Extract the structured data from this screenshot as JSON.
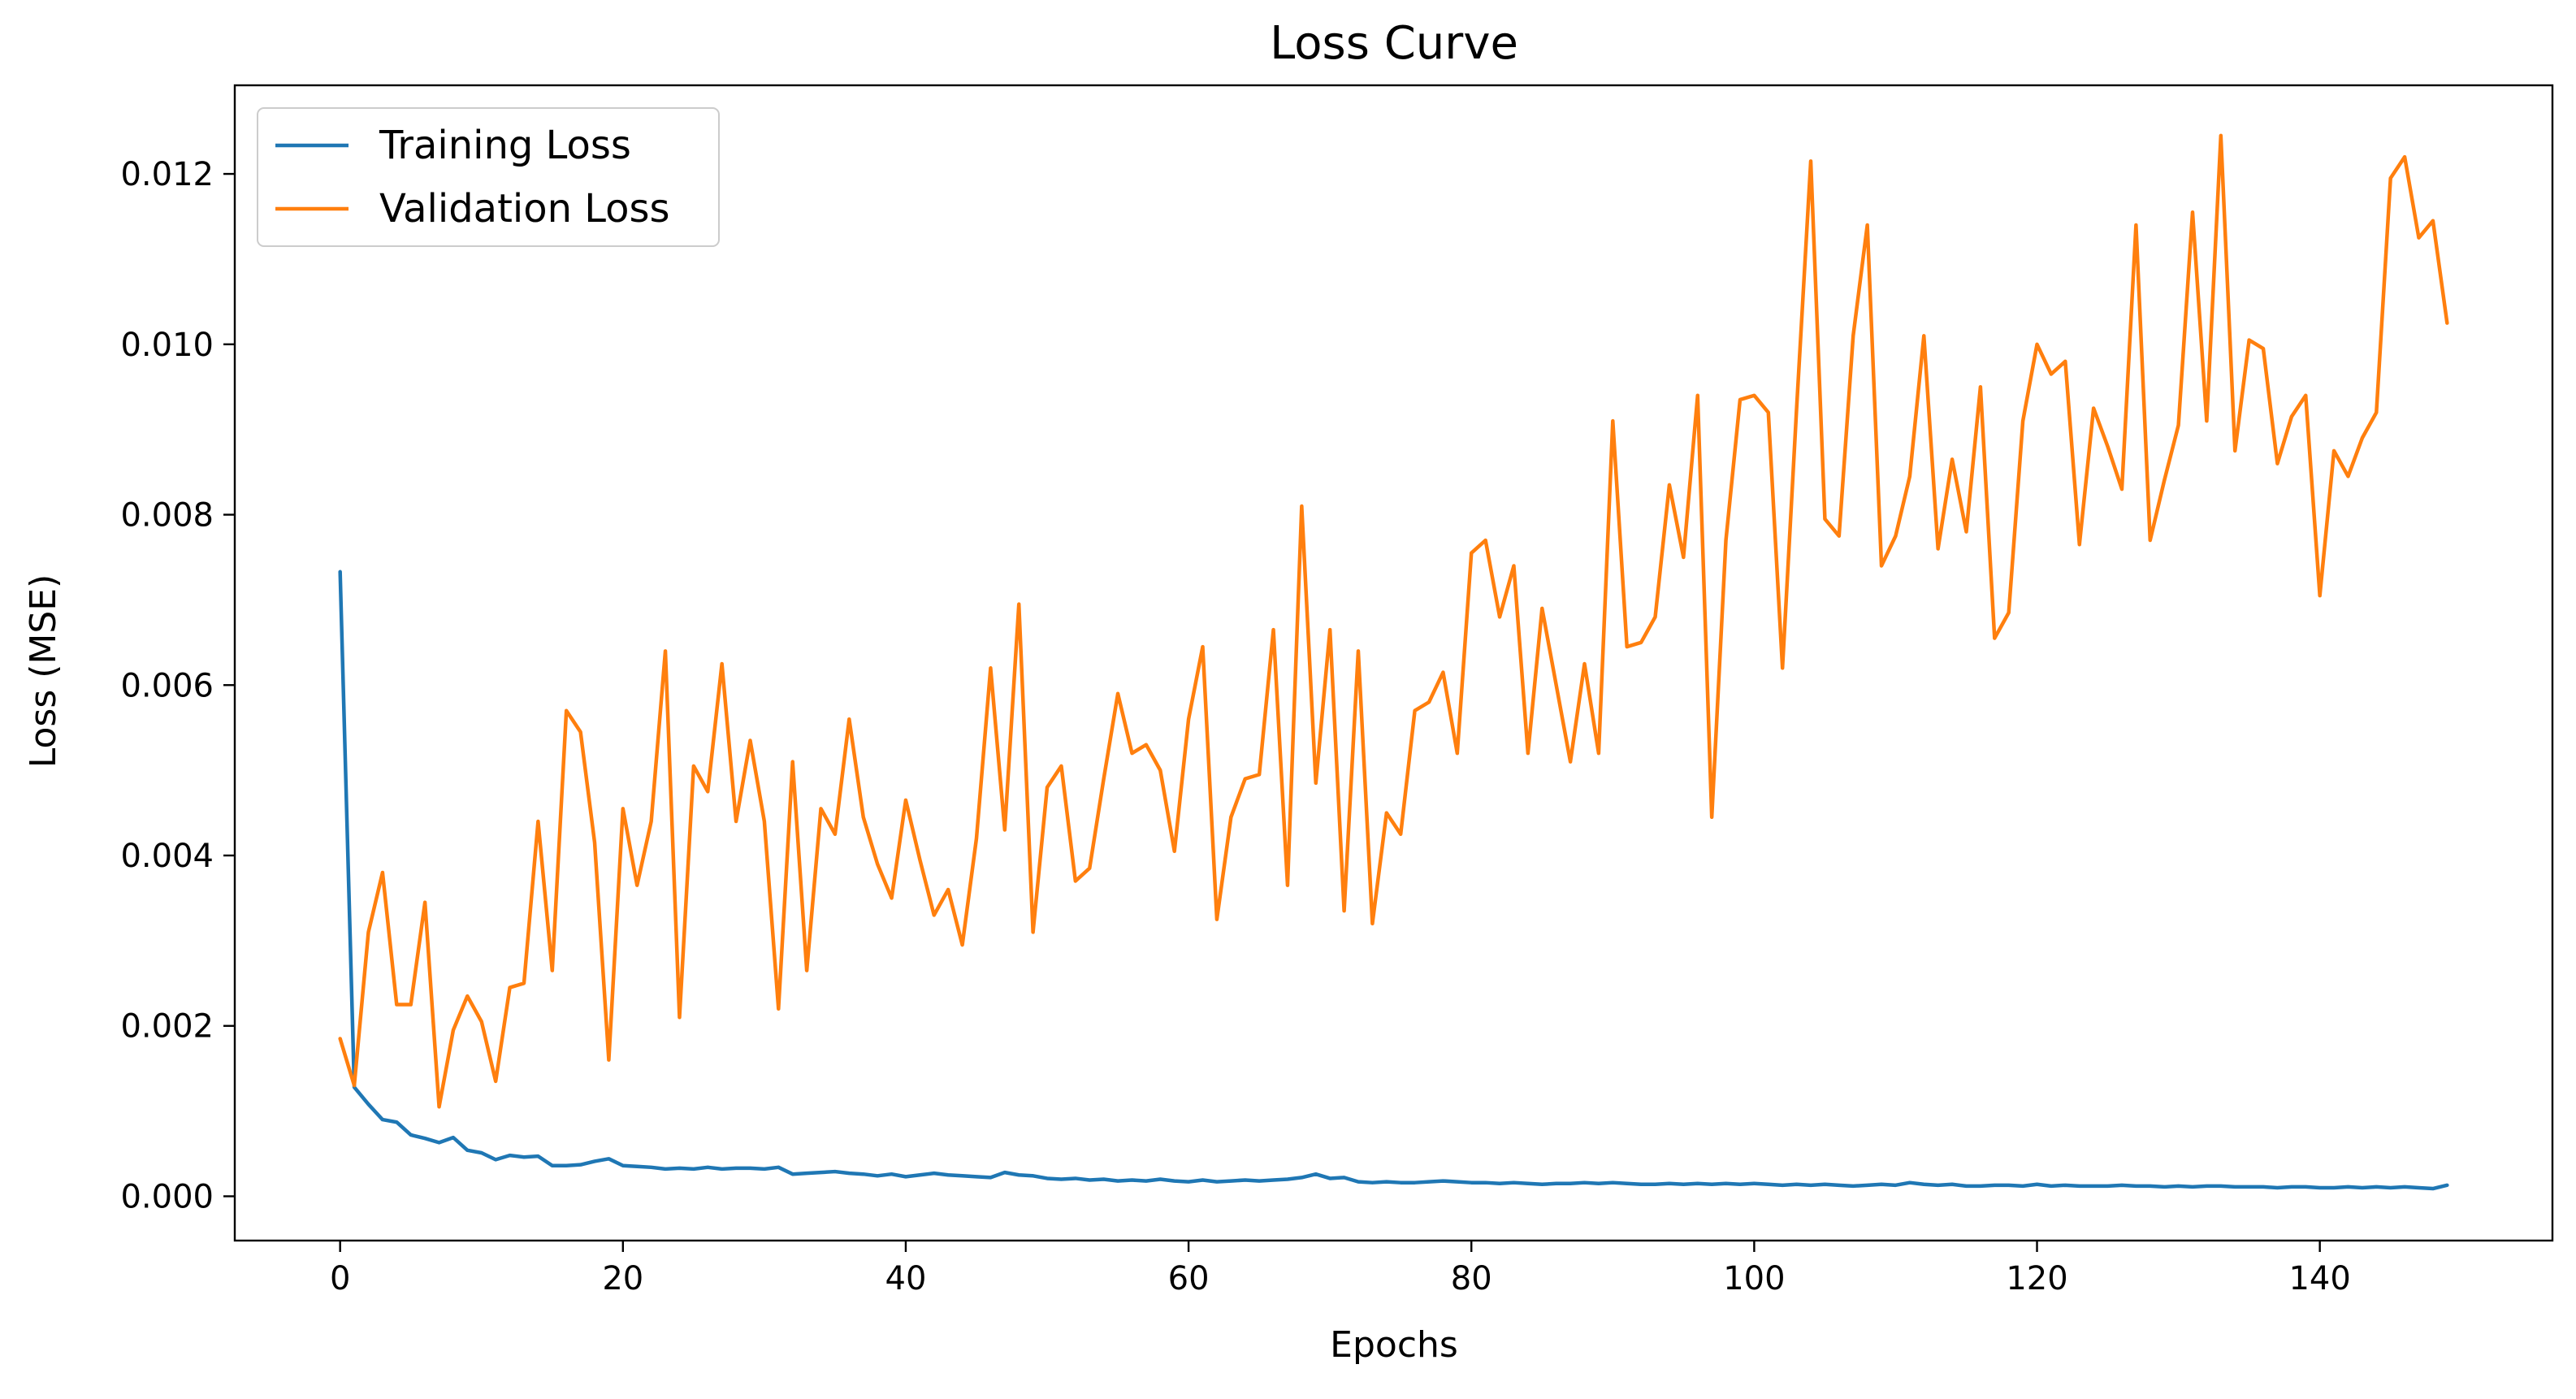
{
  "chart_data": {
    "type": "line",
    "title": "Loss Curve",
    "xlabel": "Epochs",
    "ylabel": "Loss (MSE)",
    "xlim": [
      -7.45,
      156.45
    ],
    "ylim": [
      -0.00052,
      0.01304
    ],
    "xticks": [
      0,
      20,
      40,
      60,
      80,
      100,
      120,
      140
    ],
    "xtick_labels": [
      "0",
      "20",
      "40",
      "60",
      "80",
      "100",
      "120",
      "140"
    ],
    "yticks": [
      0.0,
      0.002,
      0.004,
      0.006,
      0.008,
      0.01,
      0.012
    ],
    "ytick_labels": [
      "0.000",
      "0.002",
      "0.004",
      "0.006",
      "0.008",
      "0.010",
      "0.012"
    ],
    "grid": false,
    "legend_position": "top-left",
    "series": [
      {
        "name": "Training Loss",
        "color": "#1f77b4",
        "values": [
          0.00733,
          0.00128,
          0.00108,
          0.0009,
          0.00087,
          0.00072,
          0.00068,
          0.00063,
          0.00069,
          0.00054,
          0.00051,
          0.00043,
          0.00048,
          0.00046,
          0.00047,
          0.00036,
          0.00036,
          0.00037,
          0.00041,
          0.00044,
          0.00036,
          0.00035,
          0.00034,
          0.00032,
          0.00033,
          0.00032,
          0.00034,
          0.00032,
          0.00033,
          0.00033,
          0.00032,
          0.00034,
          0.00026,
          0.00027,
          0.00028,
          0.00029,
          0.00027,
          0.00026,
          0.00024,
          0.00026,
          0.00023,
          0.00025,
          0.00027,
          0.00025,
          0.00024,
          0.00023,
          0.00022,
          0.00028,
          0.00025,
          0.00024,
          0.00021,
          0.0002,
          0.00021,
          0.00019,
          0.0002,
          0.00018,
          0.00019,
          0.00018,
          0.0002,
          0.00018,
          0.00017,
          0.00019,
          0.00017,
          0.00018,
          0.00019,
          0.00018,
          0.00019,
          0.0002,
          0.00022,
          0.00026,
          0.00021,
          0.00022,
          0.00017,
          0.00016,
          0.00017,
          0.00016,
          0.00016,
          0.00017,
          0.00018,
          0.00017,
          0.00016,
          0.00016,
          0.00015,
          0.00016,
          0.00015,
          0.00014,
          0.00015,
          0.00015,
          0.00016,
          0.00015,
          0.00016,
          0.00015,
          0.00014,
          0.00014,
          0.00015,
          0.00014,
          0.00015,
          0.00014,
          0.00015,
          0.00014,
          0.00015,
          0.00014,
          0.00013,
          0.00014,
          0.00013,
          0.00014,
          0.00013,
          0.00012,
          0.00013,
          0.00014,
          0.00013,
          0.00016,
          0.00014,
          0.00013,
          0.00014,
          0.00012,
          0.00012,
          0.00013,
          0.00013,
          0.00012,
          0.00014,
          0.00012,
          0.00013,
          0.00012,
          0.00012,
          0.00012,
          0.00013,
          0.00012,
          0.00012,
          0.00011,
          0.00012,
          0.00011,
          0.00012,
          0.00012,
          0.00011,
          0.00011,
          0.00011,
          0.0001,
          0.00011,
          0.00011,
          0.0001,
          0.0001,
          0.00011,
          0.0001,
          0.00011,
          0.0001,
          0.00011,
          0.0001,
          9e-05,
          0.00013
        ]
      },
      {
        "name": "Validation Loss",
        "color": "#ff7f0e",
        "values": [
          0.00185,
          0.0013,
          0.0031,
          0.0038,
          0.00225,
          0.00225,
          0.00345,
          0.00105,
          0.00195,
          0.00235,
          0.00205,
          0.00135,
          0.00245,
          0.0025,
          0.0044,
          0.00265,
          0.0057,
          0.00545,
          0.00415,
          0.0016,
          0.00455,
          0.00365,
          0.0044,
          0.0064,
          0.0021,
          0.00505,
          0.00475,
          0.00625,
          0.0044,
          0.00535,
          0.0044,
          0.0022,
          0.0051,
          0.00265,
          0.00455,
          0.00425,
          0.0056,
          0.00445,
          0.0039,
          0.0035,
          0.00465,
          0.00395,
          0.0033,
          0.0036,
          0.00295,
          0.0042,
          0.0062,
          0.0043,
          0.00695,
          0.0031,
          0.0048,
          0.00505,
          0.0037,
          0.00385,
          0.0049,
          0.0059,
          0.0052,
          0.0053,
          0.005,
          0.00405,
          0.0056,
          0.00645,
          0.00325,
          0.00445,
          0.0049,
          0.00495,
          0.00665,
          0.00365,
          0.0081,
          0.00485,
          0.00665,
          0.00335,
          0.0064,
          0.0032,
          0.0045,
          0.00425,
          0.0057,
          0.0058,
          0.00615,
          0.0052,
          0.00755,
          0.0077,
          0.0068,
          0.0074,
          0.0052,
          0.0069,
          0.006,
          0.0051,
          0.00625,
          0.0052,
          0.0091,
          0.00645,
          0.0065,
          0.0068,
          0.00835,
          0.0075,
          0.0094,
          0.00445,
          0.0077,
          0.00935,
          0.0094,
          0.0092,
          0.0062,
          0.00925,
          0.01215,
          0.00795,
          0.00775,
          0.0101,
          0.0114,
          0.0074,
          0.00775,
          0.00845,
          0.0101,
          0.0076,
          0.00865,
          0.0078,
          0.0095,
          0.00655,
          0.00685,
          0.0091,
          0.01,
          0.00965,
          0.0098,
          0.00765,
          0.00925,
          0.0088,
          0.0083,
          0.0114,
          0.0077,
          0.0084,
          0.00905,
          0.01155,
          0.0091,
          0.01245,
          0.00875,
          0.01005,
          0.00995,
          0.0086,
          0.00915,
          0.0094,
          0.00705,
          0.00875,
          0.00845,
          0.0089,
          0.0092,
          0.01195,
          0.0122,
          0.01125,
          0.01145,
          0.01025
        ]
      }
    ]
  }
}
